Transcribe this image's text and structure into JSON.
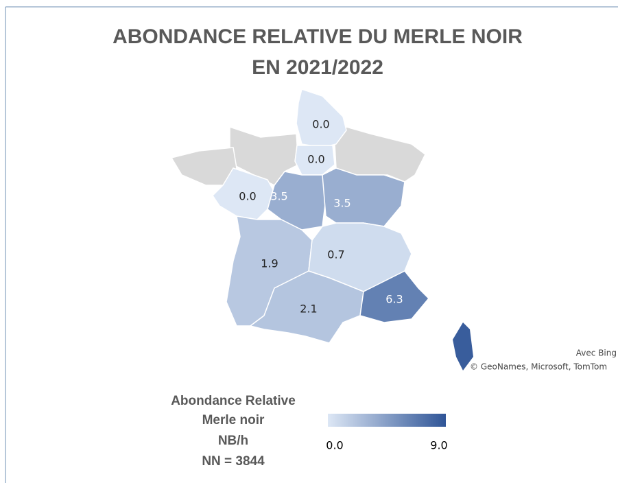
{
  "title": [
    "ABONDANCE RELATIVE DU MERLE NOIR",
    "EN 2021/2022"
  ],
  "regions": {
    "values": [
      0,
      0,
      0,
      3.5,
      3.5,
      1.9,
      0.7,
      2.1,
      6.3
    ],
    "value_labels": [
      "0.0",
      "0.0",
      "0.0",
      "3.5",
      "3.5",
      "1.9",
      "0.7",
      "2.1",
      "6.3"
    ]
  },
  "unlabeled_regions": {
    "values": [
      8.5
    ]
  },
  "legend": {
    "title": [
      "Abondance Relative",
      "Merle noir",
      "NB/h",
      "NN = 3844"
    ],
    "min": {
      "value": 0,
      "label": "0.0"
    },
    "max": {
      "value": 9,
      "label": "9.0"
    },
    "colors": [
      "#dde7f5",
      "#2f5597"
    ]
  },
  "attribution": [
    "Avec Bing",
    "© GeoNames, Microsoft, TomTom"
  ]
}
